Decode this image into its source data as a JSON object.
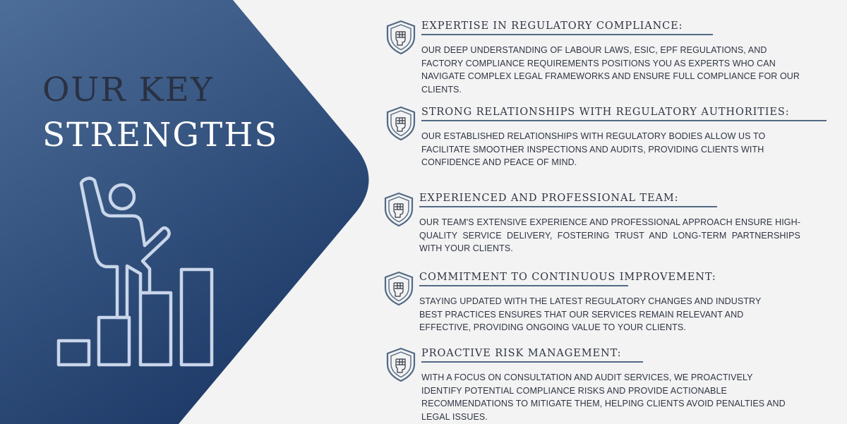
{
  "title": {
    "line1": "OUR KEY",
    "line2": "STRENGTHS"
  },
  "colors": {
    "panel_top": "#4d6e98",
    "panel_bottom": "#1e3a68",
    "accent_line": "#536a85",
    "text_dark": "#2f3543",
    "icon_light": "#c9d6ea",
    "background": "#f3f3f3"
  },
  "illustration_icon": "person-climbing-bar-steps-icon",
  "strengths": [
    {
      "icon": "fist-shield-icon",
      "title": "EXPERTISE IN REGULATORY COMPLIANCE:",
      "body": "OUR DEEP UNDERSTANDING OF LABOUR LAWS, ESIC, EPF REGULATIONS, AND FACTORY COMPLIANCE REQUIREMENTS POSITIONS YOU AS EXPERTS WHO CAN NAVIGATE COMPLEX LEGAL FRAMEWORKS AND ENSURE FULL COMPLIANCE FOR OUR CLIENTS."
    },
    {
      "icon": "fist-shield-icon",
      "title": "STRONG RELATIONSHIPS WITH REGULATORY AUTHORITIES:",
      "body": "OUR ESTABLISHED RELATIONSHIPS WITH REGULATORY BODIES ALLOW US TO FACILITATE SMOOTHER INSPECTIONS AND AUDITS, PROVIDING CLIENTS WITH CONFIDENCE AND PEACE OF MIND."
    },
    {
      "icon": "fist-shield-icon",
      "title": "EXPERIENCED AND PROFESSIONAL TEAM:",
      "body": "OUR TEAM'S EXTENSIVE EXPERIENCE AND PROFESSIONAL APPROACH ENSURE HIGH-QUALITY SERVICE DELIVERY, FOSTERING TRUST AND LONG-TERM PARTNERSHIPS WITH YOUR CLIENTS."
    },
    {
      "icon": "fist-shield-icon",
      "title": "COMMITMENT TO CONTINUOUS IMPROVEMENT:",
      "body": "STAYING UPDATED WITH THE LATEST REGULATORY CHANGES AND INDUSTRY BEST PRACTICES ENSURES THAT OUR SERVICES REMAIN RELEVANT AND EFFECTIVE, PROVIDING ONGOING VALUE TO YOUR CLIENTS."
    },
    {
      "icon": "fist-shield-icon",
      "title": "PROACTIVE RISK MANAGEMENT:",
      "body": "WITH A FOCUS ON CONSULTATION AND AUDIT SERVICES, WE PROACTIVELY IDENTIFY POTENTIAL COMPLIANCE RISKS AND PROVIDE ACTIONABLE RECOMMENDATIONS TO MITIGATE THEM, HELPING CLIENTS AVOID PENALTIES AND LEGAL ISSUES."
    }
  ]
}
